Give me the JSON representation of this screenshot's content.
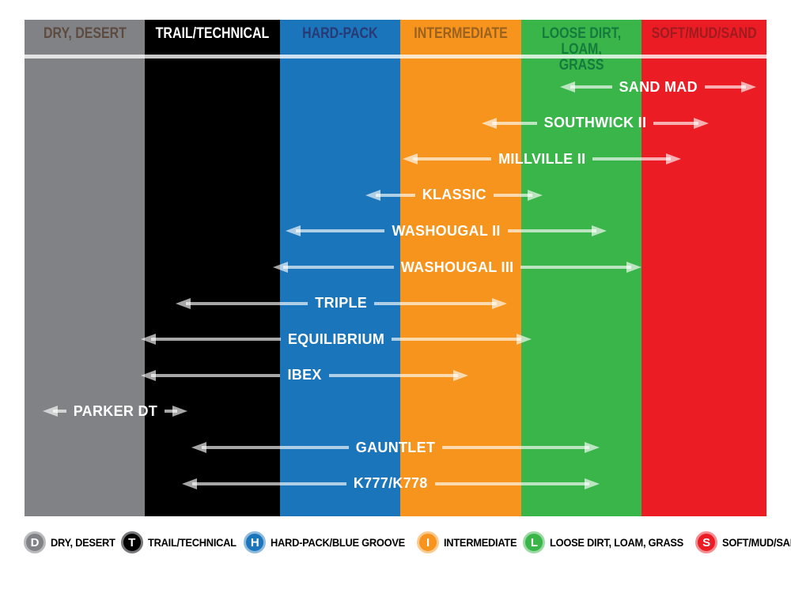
{
  "columns": [
    {
      "id": "dry-desert",
      "label": "DRY, DESERT",
      "color": "#808285",
      "label_color": "#5d4b40"
    },
    {
      "id": "trail-technical",
      "label": "TRAIL/TECHNICAL",
      "color": "#000000",
      "label_color": "#ffffff"
    },
    {
      "id": "hard-pack",
      "label": "HARD-PACK",
      "color": "#1b75bb",
      "label_color": "#283a75"
    },
    {
      "id": "intermediate",
      "label": "INTERMEDIATE",
      "color": "#f7941e",
      "label_color": "#9a611f"
    },
    {
      "id": "loose-dirt-loam-grass",
      "label": "LOOSE DIRT, LOAM,\nGRASS",
      "color": "#39b54a",
      "label_color": "#147b3d"
    },
    {
      "id": "soft-mud-sand",
      "label": "SOFT/MUD/SAND",
      "color": "#ec1c24",
      "label_color": "#9f1b20"
    }
  ],
  "chart_data": {
    "type": "bar",
    "subtype": "horizontal-range",
    "x_axis": {
      "categories": [
        "DRY, DESERT",
        "TRAIL/TECHNICAL",
        "HARD-PACK",
        "INTERMEDIATE",
        "LOOSE DIRT, LOAM, GRASS",
        "SOFT/MUD/SAND"
      ],
      "units": "terrain column index, one column = 1 unit",
      "range": [
        0,
        6
      ]
    },
    "legend_position": "bottom",
    "tires": [
      {
        "name": "SAND MAD",
        "span": [
          4.33,
          5.92
        ],
        "terrains": [
          "LOOSE DIRT, LOAM, GRASS",
          "SOFT/MUD/SAND"
        ]
      },
      {
        "name": "SOUTHWICK II",
        "span": [
          3.7,
          5.53
        ],
        "terrains": [
          "INTERMEDIATE",
          "LOOSE DIRT, LOAM, GRASS",
          "SOFT/MUD/SAND"
        ]
      },
      {
        "name": "MILLVILLE II",
        "span": [
          3.06,
          5.31
        ],
        "terrains": [
          "INTERMEDIATE",
          "LOOSE DIRT, LOAM, GRASS",
          "SOFT/MUD/SAND"
        ]
      },
      {
        "name": "KLASSIC",
        "span": [
          2.76,
          4.19
        ],
        "terrains": [
          "HARD-PACK",
          "INTERMEDIATE",
          "LOOSE DIRT, LOAM, GRASS"
        ]
      },
      {
        "name": "WASHOUGAL II",
        "span": [
          2.11,
          4.71
        ],
        "terrains": [
          "HARD-PACK",
          "INTERMEDIATE",
          "LOOSE DIRT, LOAM, GRASS"
        ]
      },
      {
        "name": "WASHOUGAL III",
        "span": [
          2.01,
          4.99
        ],
        "terrains": [
          "HARD-PACK",
          "INTERMEDIATE",
          "LOOSE DIRT, LOAM, GRASS"
        ]
      },
      {
        "name": "TRIPLE",
        "span": [
          1.22,
          3.9
        ],
        "terrains": [
          "TRAIL/TECHNICAL",
          "HARD-PACK",
          "INTERMEDIATE"
        ]
      },
      {
        "name": "EQUILIBRIUM",
        "span": [
          0.94,
          4.1
        ],
        "terrains": [
          "DRY, DESERT",
          "TRAIL/TECHNICAL",
          "HARD-PACK",
          "INTERMEDIATE",
          "LOOSE DIRT, LOAM, GRASS"
        ]
      },
      {
        "name": "IBEX",
        "span": [
          0.94,
          3.59
        ],
        "terrains": [
          "DRY, DESERT",
          "TRAIL/TECHNICAL",
          "HARD-PACK",
          "INTERMEDIATE"
        ]
      },
      {
        "name": "PARKER DT",
        "span": [
          0.15,
          1.32
        ],
        "terrains": [
          "DRY, DESERT",
          "TRAIL/TECHNICAL"
        ]
      },
      {
        "name": "GAUNTLET",
        "span": [
          1.35,
          4.65
        ],
        "terrains": [
          "TRAIL/TECHNICAL",
          "HARD-PACK",
          "INTERMEDIATE",
          "LOOSE DIRT, LOAM, GRASS"
        ]
      },
      {
        "name": "K777/K778",
        "span": [
          1.27,
          4.65
        ],
        "terrains": [
          "TRAIL/TECHNICAL",
          "HARD-PACK",
          "INTERMEDIATE",
          "LOOSE DIRT, LOAM, GRASS"
        ]
      }
    ]
  },
  "legend": [
    {
      "letter": "D",
      "label": "DRY, DESERT",
      "color": "#808285",
      "ring": "#b9babc"
    },
    {
      "letter": "T",
      "label": "TRAIL/TECHNICAL",
      "color": "#000000",
      "ring": "#77787b"
    },
    {
      "letter": "H",
      "label": "HARD-PACK/BLUE GROOVE",
      "color": "#1b75bb",
      "ring": "#8fbade"
    },
    {
      "letter": "I",
      "label": "INTERMEDIATE",
      "color": "#f7941e",
      "ring": "#fbca8e"
    },
    {
      "letter": "L",
      "label": "LOOSE DIRT, LOAM, GRASS",
      "color": "#39b54a",
      "ring": "#9cdaa4"
    },
    {
      "letter": "S",
      "label": "SOFT/MUD/SAND",
      "color": "#ec1c24",
      "ring": "#f68e91"
    }
  ]
}
